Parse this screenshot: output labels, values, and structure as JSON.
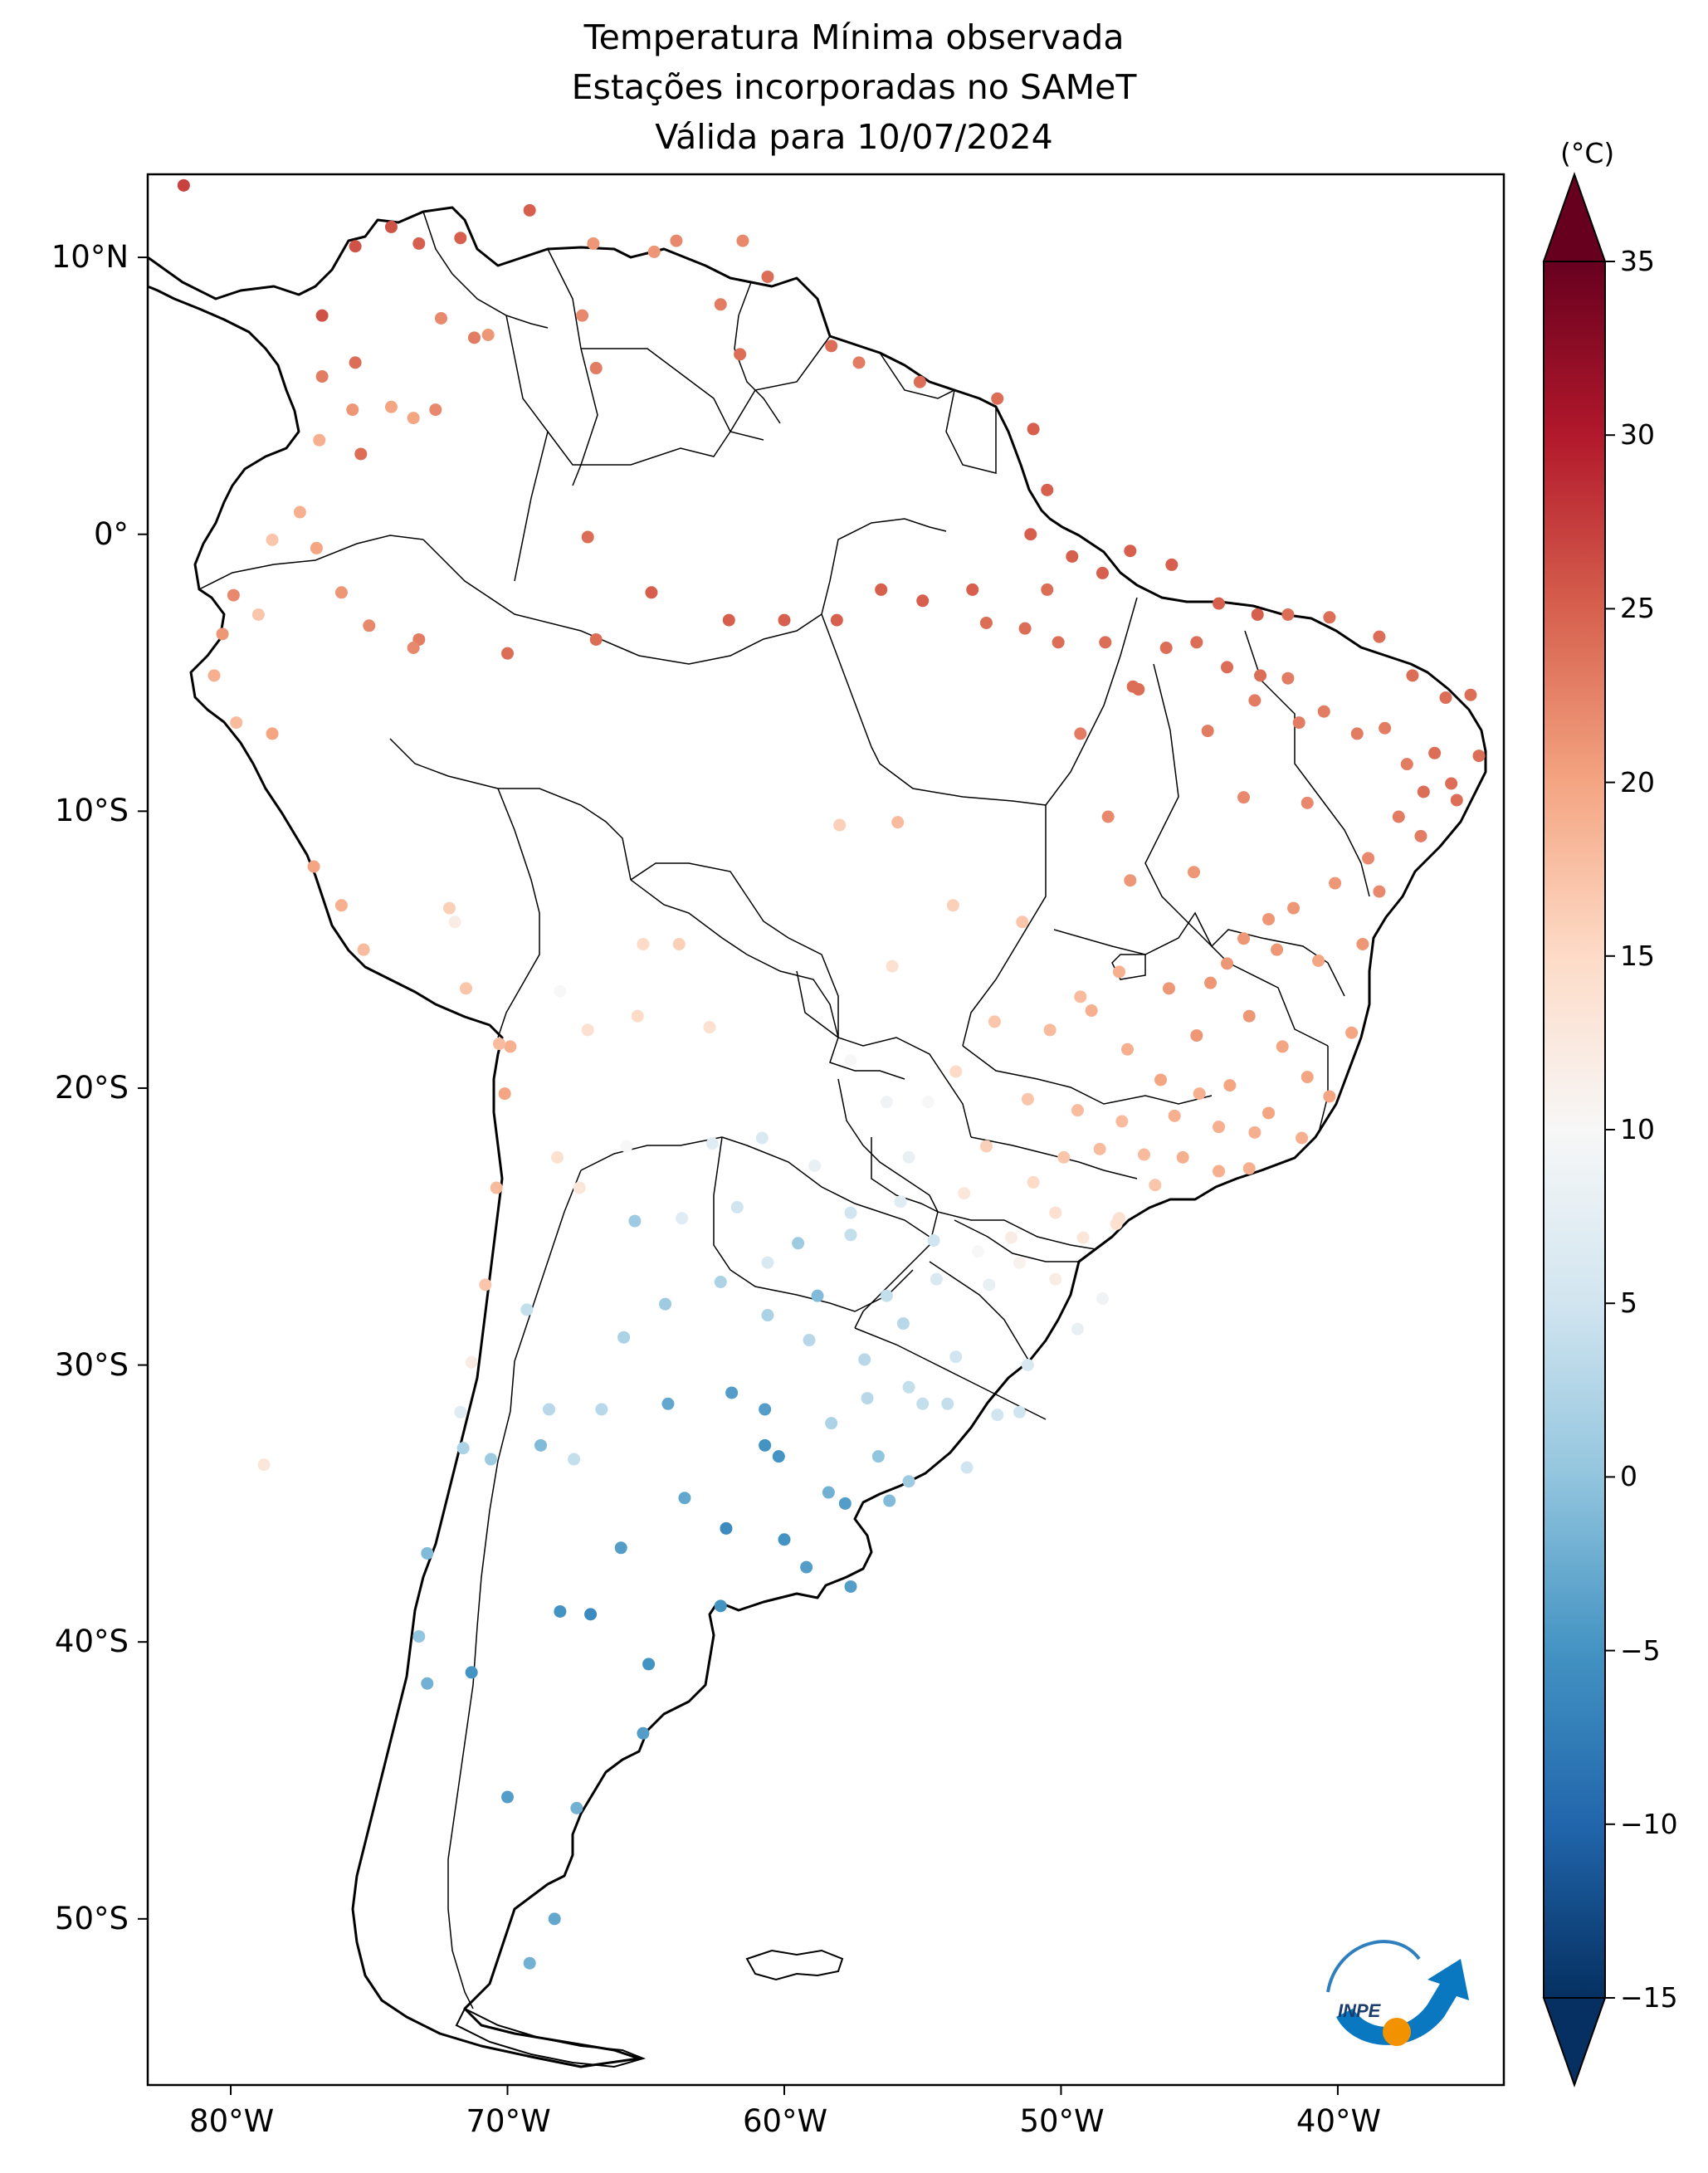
{
  "title": {
    "line1": "Temperatura Mínima observada",
    "line2": "Estações incorporadas no SAMeT",
    "line3": "Válida para 10/07/2024"
  },
  "x_ticks": [
    {
      "lon": -80,
      "label": "80°W"
    },
    {
      "lon": -70,
      "label": "70°W"
    },
    {
      "lon": -60,
      "label": "60°W"
    },
    {
      "lon": -50,
      "label": "50°W"
    },
    {
      "lon": -40,
      "label": "40°W"
    }
  ],
  "y_ticks": [
    {
      "lat": 10,
      "label": "10°N"
    },
    {
      "lat": 0,
      "label": "0°"
    },
    {
      "lat": -10,
      "label": "10°S"
    },
    {
      "lat": -20,
      "label": "20°S"
    },
    {
      "lat": -30,
      "label": "30°S"
    },
    {
      "lat": -40,
      "label": "40°S"
    },
    {
      "lat": -50,
      "label": "50°S"
    }
  ],
  "colorbar": {
    "unit": "(°C)",
    "min": -15,
    "max": 35,
    "ticks": [
      {
        "value": 35,
        "label": "35"
      },
      {
        "value": 30,
        "label": "30"
      },
      {
        "value": 25,
        "label": "25"
      },
      {
        "value": 20,
        "label": "20"
      },
      {
        "value": 15,
        "label": "15"
      },
      {
        "value": 10,
        "label": "10"
      },
      {
        "value": 5,
        "label": "5"
      },
      {
        "value": 0,
        "label": "0"
      },
      {
        "value": -5,
        "label": "−5"
      },
      {
        "value": -10,
        "label": "−10"
      },
      {
        "value": -15,
        "label": "−15"
      }
    ],
    "colormap": "RdBu_r",
    "stops": [
      "#053061",
      "#2166ac",
      "#4393c3",
      "#92c5de",
      "#d1e5f0",
      "#f7f7f7",
      "#fddbc7",
      "#f4a582",
      "#d6604d",
      "#b2182b",
      "#67001f"
    ]
  },
  "logo": {
    "text": "INPE"
  },
  "map_extent": {
    "lon_min": -83,
    "lon_max": -34,
    "lat_min": -56,
    "lat_max": 13
  },
  "chart_data": {
    "type": "scatter",
    "title": "Temperatura Mínima observada / Estações incorporadas no SAMeT / Válida para 10/07/2024",
    "xlabel": "",
    "ylabel": "",
    "xlim": [
      -83,
      -34
    ],
    "ylim": [
      -56,
      13
    ],
    "value_unit": "°C",
    "points": [
      [
        -81.7,
        12.6,
        27
      ],
      [
        -74.2,
        11.1,
        26
      ],
      [
        -73.2,
        10.5,
        25
      ],
      [
        -75.5,
        10.4,
        26
      ],
      [
        -71.7,
        10.7,
        25
      ],
      [
        -69.2,
        11.7,
        25
      ],
      [
        -66.9,
        10.5,
        21
      ],
      [
        -64.7,
        10.2,
        21
      ],
      [
        -63.9,
        10.6,
        22
      ],
      [
        -61.5,
        10.6,
        22
      ],
      [
        -60.6,
        9.3,
        24
      ],
      [
        -62.3,
        8.3,
        23
      ],
      [
        -67.3,
        7.9,
        22
      ],
      [
        -70.7,
        7.2,
        21
      ],
      [
        -72.4,
        7.8,
        22
      ],
      [
        -76.7,
        7.9,
        26
      ],
      [
        -75.5,
        6.2,
        24
      ],
      [
        -76.7,
        5.7,
        23
      ],
      [
        -75.6,
        4.5,
        21
      ],
      [
        -74.2,
        4.6,
        20
      ],
      [
        -73.4,
        4.2,
        20
      ],
      [
        -76.8,
        3.4,
        19
      ],
      [
        -75.3,
        2.9,
        24
      ],
      [
        -72.6,
        4.5,
        22
      ],
      [
        -71.2,
        7.1,
        23
      ],
      [
        -66.8,
        6.0,
        23
      ],
      [
        -61.6,
        6.5,
        24
      ],
      [
        -58.3,
        6.8,
        24
      ],
      [
        -57.3,
        6.2,
        23
      ],
      [
        -55.1,
        5.5,
        24
      ],
      [
        -52.3,
        4.9,
        24
      ],
      [
        -51.0,
        3.8,
        25
      ],
      [
        -50.5,
        1.6,
        25
      ],
      [
        -51.1,
        0.0,
        25
      ],
      [
        -49.6,
        -0.8,
        25
      ],
      [
        -48.5,
        -1.4,
        25
      ],
      [
        -47.5,
        -0.6,
        25
      ],
      [
        -46.0,
        -1.1,
        25
      ],
      [
        -44.3,
        -2.5,
        25
      ],
      [
        -42.9,
        -2.9,
        25
      ],
      [
        -41.8,
        -2.9,
        24
      ],
      [
        -40.3,
        -3.0,
        24
      ],
      [
        -38.5,
        -3.7,
        24
      ],
      [
        -37.3,
        -5.1,
        24
      ],
      [
        -36.1,
        -5.9,
        24
      ],
      [
        -35.2,
        -5.8,
        24
      ],
      [
        -34.9,
        -8.0,
        24
      ],
      [
        -35.7,
        -9.6,
        24
      ],
      [
        -37.0,
        -10.9,
        23
      ],
      [
        -38.5,
        -12.9,
        22
      ],
      [
        -39.1,
        -14.8,
        21
      ],
      [
        -39.5,
        -18.0,
        20
      ],
      [
        -40.3,
        -20.3,
        20
      ],
      [
        -41.3,
        -21.8,
        19
      ],
      [
        -43.2,
        -22.9,
        19
      ],
      [
        -44.3,
        -23.0,
        19
      ],
      [
        -46.6,
        -23.5,
        17
      ],
      [
        -47.9,
        -24.7,
        14
      ],
      [
        -48.5,
        -27.6,
        9
      ],
      [
        -49.4,
        -28.7,
        8
      ],
      [
        -51.2,
        -30.0,
        6
      ],
      [
        -52.3,
        -31.8,
        5
      ],
      [
        -53.4,
        -33.7,
        5
      ],
      [
        -55.0,
        -31.4,
        4
      ],
      [
        -56.2,
        -34.9,
        -1
      ],
      [
        -57.6,
        -38.0,
        -4
      ],
      [
        -58.4,
        -34.6,
        -2
      ],
      [
        -60.7,
        -32.9,
        -5
      ],
      [
        -62.3,
        -38.7,
        -5
      ],
      [
        -64.2,
        -31.4,
        -3
      ],
      [
        -65.4,
        -24.8,
        1
      ],
      [
        -68.8,
        -32.9,
        -1
      ],
      [
        -70.6,
        -33.4,
        1
      ],
      [
        -71.6,
        -33.0,
        2
      ],
      [
        -72.9,
        -36.8,
        -1
      ],
      [
        -73.2,
        -39.8,
        0
      ],
      [
        -72.9,
        -41.5,
        -2
      ],
      [
        -71.3,
        -41.1,
        -5
      ],
      [
        -70.0,
        -45.6,
        -4
      ],
      [
        -68.3,
        -50.0,
        -3
      ],
      [
        -69.2,
        -51.6,
        -2
      ],
      [
        -67.5,
        -46.0,
        -2
      ],
      [
        -65.1,
        -43.3,
        -4
      ],
      [
        -64.9,
        -40.8,
        -5
      ],
      [
        -67.0,
        -39.0,
        -6
      ],
      [
        -68.1,
        -38.9,
        -5
      ],
      [
        -65.9,
        -36.6,
        -4
      ],
      [
        -62.1,
        -35.9,
        -6
      ],
      [
        -60.2,
        -33.3,
        -5
      ],
      [
        -59.2,
        -37.3,
        -4
      ],
      [
        -57.8,
        -35.0,
        -4
      ],
      [
        -56.6,
        -33.3,
        0
      ],
      [
        -60.0,
        -36.3,
        -5
      ],
      [
        -63.6,
        -34.8,
        -3
      ],
      [
        -61.9,
        -31.0,
        -4
      ],
      [
        -60.7,
        -31.6,
        -4
      ],
      [
        -58.8,
        -27.5,
        -1
      ],
      [
        -59.5,
        -25.6,
        1
      ],
      [
        -57.6,
        -25.3,
        4
      ],
      [
        -54.6,
        -25.5,
        5
      ],
      [
        -55.5,
        -22.5,
        8
      ],
      [
        -54.8,
        -20.5,
        10
      ],
      [
        -56.1,
        -15.6,
        14
      ],
      [
        -58.0,
        -10.5,
        16
      ],
      [
        -55.9,
        -10.4,
        18
      ],
      [
        -53.9,
        -13.4,
        16
      ],
      [
        -51.4,
        -14.0,
        17
      ],
      [
        -49.3,
        -16.7,
        18
      ],
      [
        -47.9,
        -15.8,
        19
      ],
      [
        -47.5,
        -12.5,
        21
      ],
      [
        -48.3,
        -10.2,
        22
      ],
      [
        -49.3,
        -7.2,
        23
      ],
      [
        -47.4,
        -5.5,
        24
      ],
      [
        -44.7,
        -7.1,
        23
      ],
      [
        -42.8,
        -5.1,
        24
      ],
      [
        -41.4,
        -6.8,
        23
      ],
      [
        -43.4,
        -9.5,
        22
      ],
      [
        -41.1,
        -9.7,
        22
      ],
      [
        -45.2,
        -12.2,
        21
      ],
      [
        -44.0,
        -15.5,
        21
      ],
      [
        -42.2,
        -15.0,
        21
      ],
      [
        -40.7,
        -15.4,
        20
      ],
      [
        -43.9,
        -19.9,
        20
      ],
      [
        -45.9,
        -21.0,
        19
      ],
      [
        -47.8,
        -21.2,
        18
      ],
      [
        -49.4,
        -20.8,
        18
      ],
      [
        -51.2,
        -20.4,
        17
      ],
      [
        -52.7,
        -22.1,
        16
      ],
      [
        -53.5,
        -23.8,
        13
      ],
      [
        -51.8,
        -25.4,
        12
      ],
      [
        -50.2,
        -26.9,
        12
      ],
      [
        -52.6,
        -27.1,
        8
      ],
      [
        -53.8,
        -29.7,
        5
      ],
      [
        -51.5,
        -31.7,
        5
      ],
      [
        -54.1,
        -31.4,
        4
      ],
      [
        -55.5,
        -30.8,
        4
      ],
      [
        -57.1,
        -29.8,
        3
      ],
      [
        -56.3,
        -27.5,
        4
      ],
      [
        -58.9,
        -22.8,
        8
      ],
      [
        -60.8,
        -21.8,
        6
      ],
      [
        -62.6,
        -22.0,
        7
      ],
      [
        -62.7,
        -17.8,
        14
      ],
      [
        -63.8,
        -14.8,
        16
      ],
      [
        -65.1,
        -14.8,
        15
      ],
      [
        -68.1,
        -16.5,
        10
      ],
      [
        -65.3,
        -17.4,
        15
      ],
      [
        -67.1,
        -17.9,
        14
      ],
      [
        -69.9,
        -18.5,
        19
      ],
      [
        -70.3,
        -18.4,
        18
      ],
      [
        -70.1,
        -20.2,
        20
      ],
      [
        -70.4,
        -23.6,
        18
      ],
      [
        -70.8,
        -27.1,
        17
      ],
      [
        -71.3,
        -29.9,
        12
      ],
      [
        -71.7,
        -31.7,
        7
      ],
      [
        -78.8,
        -33.6,
        13
      ],
      [
        -77.0,
        -12.0,
        20
      ],
      [
        -76.0,
        -13.4,
        19
      ],
      [
        -75.2,
        -15.0,
        18
      ],
      [
        -71.5,
        -16.4,
        17
      ],
      [
        -72.1,
        -13.5,
        16
      ],
      [
        -71.9,
        -14.0,
        12
      ],
      [
        -73.2,
        -3.8,
        23
      ],
      [
        -78.5,
        -7.2,
        20
      ],
      [
        -79.8,
        -6.8,
        18
      ],
      [
        -80.6,
        -5.1,
        19
      ],
      [
        -80.3,
        -3.6,
        21
      ],
      [
        -79.9,
        -2.2,
        22
      ],
      [
        -79.0,
        -2.9,
        17
      ],
      [
        -78.5,
        -0.2,
        17
      ],
      [
        -77.5,
        0.8,
        19
      ],
      [
        -76.9,
        -0.5,
        20
      ],
      [
        -76.0,
        -2.1,
        21
      ],
      [
        -75.0,
        -3.3,
        22
      ],
      [
        -73.4,
        -4.1,
        22
      ],
      [
        -70.0,
        -4.3,
        24
      ],
      [
        -67.1,
        -0.1,
        24
      ],
      [
        -66.8,
        -3.8,
        24
      ],
      [
        -64.8,
        -2.1,
        25
      ],
      [
        -62.0,
        -3.1,
        25
      ],
      [
        -60.0,
        -3.1,
        25
      ],
      [
        -58.1,
        -3.1,
        25
      ],
      [
        -56.5,
        -2.0,
        25
      ],
      [
        -55.0,
        -2.4,
        25
      ],
      [
        -53.2,
        -2.0,
        25
      ],
      [
        -52.7,
        -3.2,
        24
      ],
      [
        -51.3,
        -3.4,
        24
      ],
      [
        -50.5,
        -2.0,
        24
      ],
      [
        -50.1,
        -3.9,
        24
      ],
      [
        -48.4,
        -3.9,
        24
      ],
      [
        -47.2,
        -5.6,
        24
      ],
      [
        -46.2,
        -4.1,
        24
      ],
      [
        -45.1,
        -3.9,
        24
      ],
      [
        -44.0,
        -4.8,
        24
      ],
      [
        -43.0,
        -6.0,
        23
      ],
      [
        -41.8,
        -5.2,
        23
      ],
      [
        -40.5,
        -6.4,
        23
      ],
      [
        -39.3,
        -7.2,
        23
      ],
      [
        -38.3,
        -7.0,
        23
      ],
      [
        -37.5,
        -8.3,
        23
      ],
      [
        -36.5,
        -7.9,
        24
      ],
      [
        -35.9,
        -9.0,
        24
      ],
      [
        -36.9,
        -9.3,
        24
      ],
      [
        -37.8,
        -10.2,
        23
      ],
      [
        -38.9,
        -11.7,
        22
      ],
      [
        -40.1,
        -12.6,
        21
      ],
      [
        -41.6,
        -13.5,
        21
      ],
      [
        -42.5,
        -13.9,
        21
      ],
      [
        -43.4,
        -14.6,
        21
      ],
      [
        -44.6,
        -16.2,
        21
      ],
      [
        -46.1,
        -16.4,
        21
      ],
      [
        -45.1,
        -18.1,
        21
      ],
      [
        -43.2,
        -17.4,
        21
      ],
      [
        -42.0,
        -18.5,
        20
      ],
      [
        -41.1,
        -19.6,
        20
      ],
      [
        -42.5,
        -20.9,
        20
      ],
      [
        -44.3,
        -21.4,
        19
      ],
      [
        -45.6,
        -22.5,
        19
      ],
      [
        -47.0,
        -22.4,
        18
      ],
      [
        -48.6,
        -22.2,
        18
      ],
      [
        -49.9,
        -22.5,
        17
      ],
      [
        -51.0,
        -23.4,
        15
      ],
      [
        -50.2,
        -24.5,
        14
      ],
      [
        -48.0,
        -24.9,
        14
      ],
      [
        -49.2,
        -25.4,
        13
      ],
      [
        -51.5,
        -26.3,
        11
      ],
      [
        -53.0,
        -25.9,
        10
      ],
      [
        -54.5,
        -26.9,
        6
      ],
      [
        -55.7,
        -28.5,
        3
      ],
      [
        -57.0,
        -31.2,
        3
      ],
      [
        -58.3,
        -32.1,
        2
      ],
      [
        -55.5,
        -34.2,
        1
      ],
      [
        -59.1,
        -29.1,
        3
      ],
      [
        -60.6,
        -28.2,
        2
      ],
      [
        -62.3,
        -27.0,
        2
      ],
      [
        -64.3,
        -27.8,
        1
      ],
      [
        -65.8,
        -29.0,
        2
      ],
      [
        -66.6,
        -31.6,
        3
      ],
      [
        -67.6,
        -33.4,
        4
      ],
      [
        -68.5,
        -31.6,
        3
      ],
      [
        -69.3,
        -28.0,
        4
      ],
      [
        -68.2,
        -22.5,
        14
      ],
      [
        -67.4,
        -23.6,
        13
      ],
      [
        -65.7,
        -22.1,
        10
      ],
      [
        -63.7,
        -24.7,
        7
      ],
      [
        -61.7,
        -24.3,
        5
      ],
      [
        -60.6,
        -26.3,
        6
      ],
      [
        -57.6,
        -24.5,
        5
      ],
      [
        -55.8,
        -24.1,
        7
      ],
      [
        -56.3,
        -20.5,
        9
      ],
      [
        -57.6,
        -19.0,
        10
      ],
      [
        -53.8,
        -19.4,
        15
      ],
      [
        -52.4,
        -17.6,
        17
      ],
      [
        -50.4,
        -17.9,
        18
      ],
      [
        -48.9,
        -17.2,
        19
      ],
      [
        -47.6,
        -18.6,
        19
      ],
      [
        -46.4,
        -19.7,
        20
      ],
      [
        -45.0,
        -20.2,
        19
      ],
      [
        -43.0,
        -21.6,
        19
      ]
    ]
  }
}
